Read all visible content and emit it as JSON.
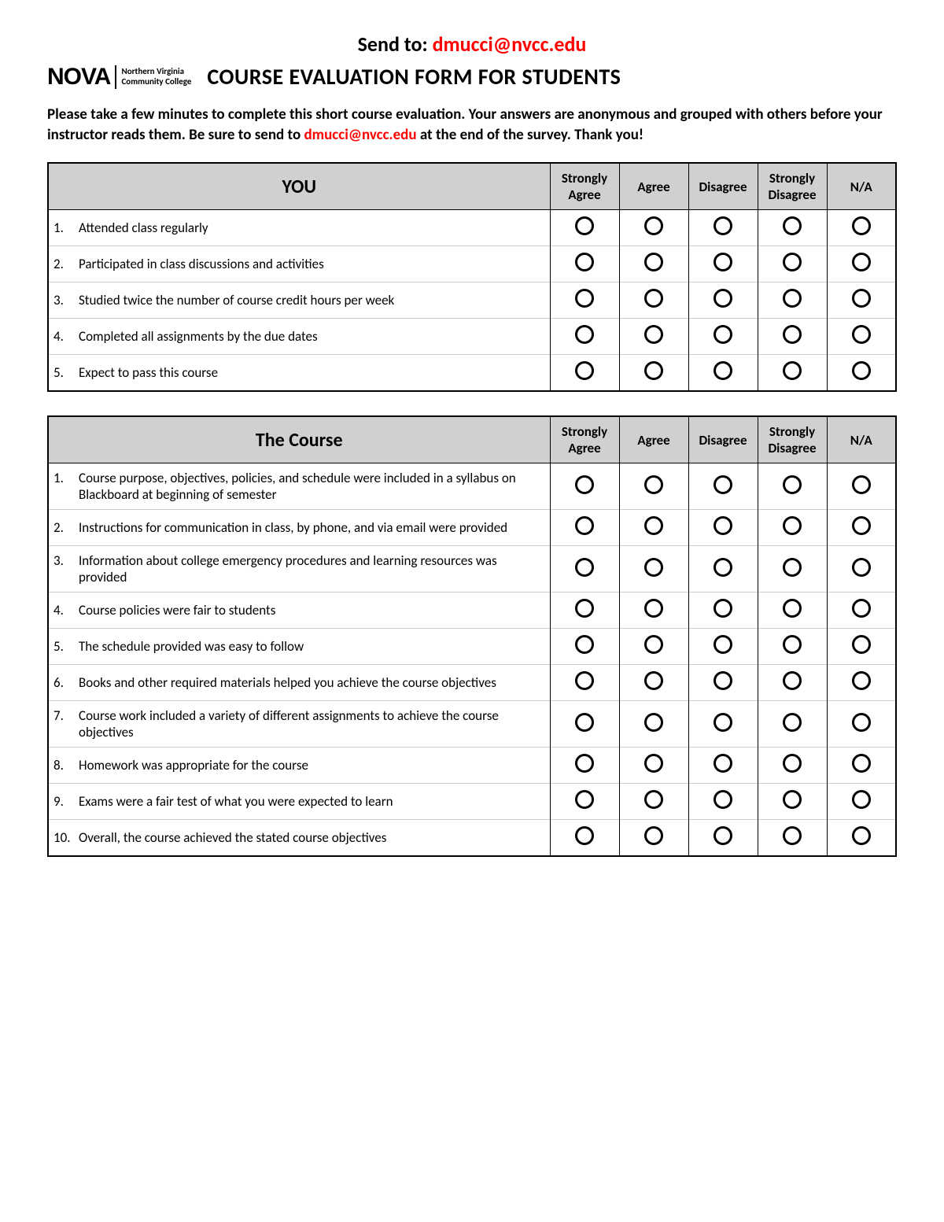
{
  "send_to_prefix": "Send to: ",
  "send_to_email": "dmucci@nvcc.edu",
  "logo_main": "NOVA",
  "logo_sub_line1": "Northern Virginia",
  "logo_sub_line2": "Community College",
  "title": "COURSE EVALUATION FORM FOR STUDENTS",
  "intro_part1": "Please take a few minutes to complete this short course evaluation.  Your answers are anonymous and grouped with others before your instructor reads them.  Be sure to send to ",
  "intro_email": "dmucci@nvcc.edu",
  "intro_part2": " at the end of the survey.  Thank you!",
  "scale": [
    "Strongly Agree",
    "Agree",
    "Disagree",
    "Strongly Disagree",
    "N/A"
  ],
  "sections": {
    "you": {
      "heading": "YOU",
      "questions": [
        {
          "num": "1.",
          "text": "Attended class regularly"
        },
        {
          "num": "2.",
          "text": "Participated in class discussions and activities"
        },
        {
          "num": "3.",
          "text": "Studied twice the number of course credit hours per week"
        },
        {
          "num": "4.",
          "text": "Completed all assignments by the due dates"
        },
        {
          "num": "5.",
          "text": "Expect to pass this course"
        }
      ]
    },
    "course": {
      "heading": "The Course",
      "questions": [
        {
          "num": "1.",
          "text": "Course purpose, objectives, policies, and schedule were included in a syllabus on Blackboard at beginning of semester"
        },
        {
          "num": "2.",
          "text": "Instructions for communication in class, by phone, and via email were provided"
        },
        {
          "num": "3.",
          "text": "Information about college emergency procedures and learning resources was provided"
        },
        {
          "num": "4.",
          "text": "Course policies were fair to students"
        },
        {
          "num": "5.",
          "text": "The schedule provided was easy to follow"
        },
        {
          "num": "6.",
          "text": "Books and other required materials helped you achieve the course objectives"
        },
        {
          "num": "7.",
          "text": "Course work included a variety of different assignments to achieve the course objectives"
        },
        {
          "num": "8.",
          "text": "Homework was appropriate for the course"
        },
        {
          "num": "9.",
          "text": "Exams were a fair test of what you were expected to learn"
        },
        {
          "num": "10.",
          "text": "Overall, the course achieved the stated course objectives"
        }
      ]
    }
  },
  "colors": {
    "email": "#ff0000",
    "header_bg": "#d0d0d0",
    "border": "#000000",
    "row_border": "#cccccc",
    "text": "#000000",
    "background": "#ffffff"
  }
}
